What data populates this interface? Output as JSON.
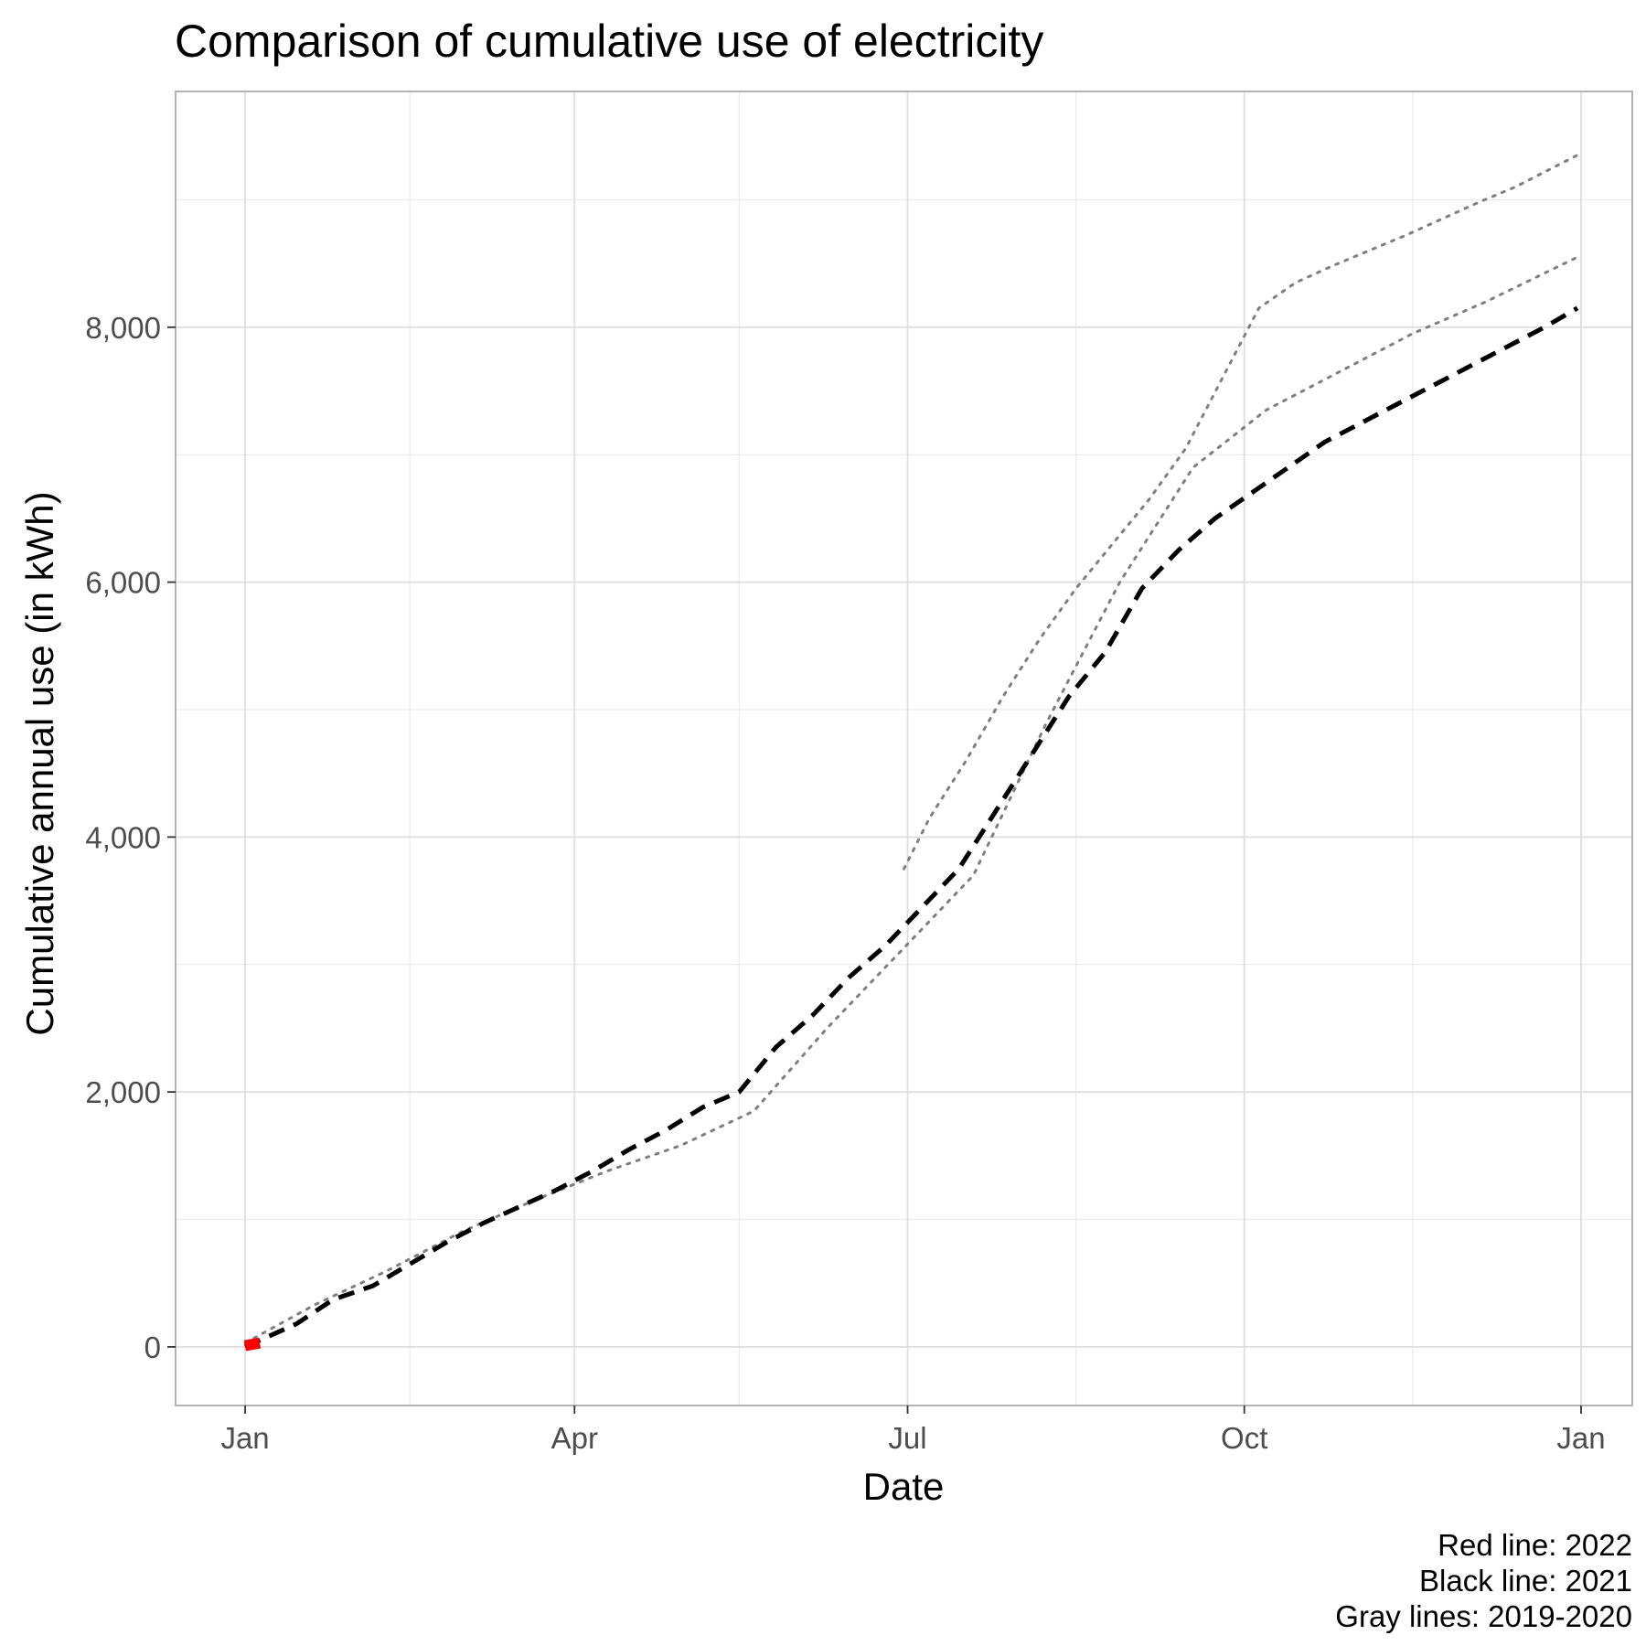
{
  "chart_data": {
    "type": "line",
    "title": "Comparison of cumulative use of electricity",
    "xlabel": "Date",
    "ylabel": "Cumulative annual use (in kWh)",
    "x_tick_labels": [
      "Jan",
      "Apr",
      "Jul",
      "Oct",
      "Jan"
    ],
    "x_ticks_major": [
      "2021-01-01",
      "2021-04-01",
      "2021-07-01",
      "2021-10-01",
      "2022-01-01"
    ],
    "x_ticks_minor": [
      "2021-02-15",
      "2021-05-16",
      "2021-08-16",
      "2021-11-16"
    ],
    "xlim": [
      "2020-12-13",
      "2022-01-15"
    ],
    "y_ticks": [
      0,
      2000,
      4000,
      6000,
      8000
    ],
    "y_tick_labels": [
      "0",
      "2,000",
      "4,000",
      "6,000",
      "8,000"
    ],
    "y_minor_ticks": [
      1000,
      3000,
      5000,
      7000,
      9000
    ],
    "ylim": [
      -460,
      9850
    ],
    "grid": true,
    "caption_lines": [
      "Red line: 2022",
      "Black line: 2021",
      "Gray lines: 2019-2020"
    ],
    "series": [
      {
        "style": "solid",
        "color": "#ff0000",
        "x": [
          "2021-01-01",
          "2021-01-03",
          "2021-01-05"
        ],
        "y": [
          10,
          20,
          30
        ]
      },
      {
        "style": "dashed",
        "color": "#000000",
        "x": [
          "2021-01-01",
          "2021-01-15",
          "2021-01-25",
          "2021-02-05",
          "2021-02-15",
          "2021-02-25",
          "2021-03-07",
          "2021-03-17",
          "2021-03-27",
          "2021-04-06",
          "2021-04-16",
          "2021-04-26",
          "2021-05-06",
          "2021-05-16",
          "2021-05-26",
          "2021-06-05",
          "2021-06-15",
          "2021-06-25",
          "2021-07-05",
          "2021-07-15",
          "2021-07-25",
          "2021-08-04",
          "2021-08-14",
          "2021-08-24",
          "2021-09-03",
          "2021-09-13",
          "2021-09-23",
          "2021-10-03",
          "2021-10-13",
          "2021-10-23",
          "2021-11-02",
          "2021-11-12",
          "2021-11-22",
          "2021-12-02",
          "2021-12-12",
          "2021-12-22",
          "2021-12-31"
        ],
        "y": [
          0,
          180,
          370,
          480,
          650,
          820,
          970,
          1100,
          1230,
          1380,
          1550,
          1700,
          1880,
          2000,
          2350,
          2600,
          2900,
          3150,
          3450,
          3750,
          4200,
          4650,
          5100,
          5450,
          5950,
          6250,
          6500,
          6700,
          6900,
          7100,
          7250,
          7400,
          7550,
          7700,
          7850,
          8000,
          8150
        ]
      },
      {
        "style": "dotted",
        "color": "#7f7f7f",
        "x": [
          "2021-01-01",
          "2021-01-20",
          "2021-02-09",
          "2021-03-01",
          "2021-03-21",
          "2021-04-10",
          "2021-04-30",
          "2021-05-20",
          "2021-06-09",
          "2021-06-29",
          "2021-07-19",
          "2021-08-08",
          "2021-08-28",
          "2021-09-17",
          "2021-10-07",
          "2021-10-27",
          "2021-11-16",
          "2021-12-06",
          "2021-12-31"
        ],
        "y": [
          30,
          330,
          600,
          900,
          1150,
          1380,
          1580,
          1850,
          2500,
          3100,
          3700,
          4900,
          6000,
          6900,
          7350,
          7650,
          7950,
          8200,
          8550
        ]
      },
      {
        "style": "dotted",
        "color": "#7f7f7f",
        "x": [
          "2021-06-30",
          "2021-07-07",
          "2021-07-17",
          "2021-07-27",
          "2021-08-06",
          "2021-08-16",
          "2021-08-26",
          "2021-09-05",
          "2021-09-15",
          "2021-09-25",
          "2021-10-05",
          "2021-10-15",
          "2021-10-25",
          "2021-11-04",
          "2021-11-14",
          "2021-11-24",
          "2021-12-04",
          "2021-12-14",
          "2021-12-31"
        ],
        "y": [
          3750,
          4150,
          4600,
          5100,
          5550,
          5950,
          6300,
          6650,
          7050,
          7600,
          8150,
          8350,
          8480,
          8600,
          8720,
          8850,
          8980,
          9100,
          9350
        ]
      }
    ]
  }
}
